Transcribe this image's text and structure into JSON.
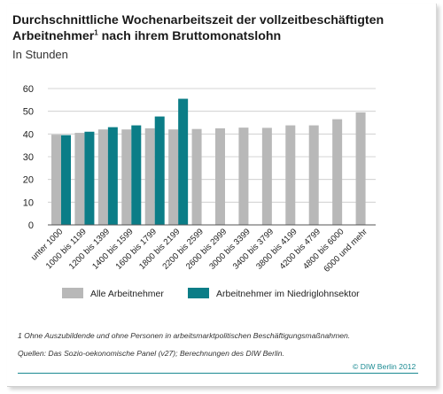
{
  "header": {
    "title_line1": "Durchschnittliche Wochenarbeitszeit der vollzeitbeschäftigten",
    "title_line2": "Arbeitnehmer",
    "title_sup": "1",
    "title_line2_rest": " nach ihrem Bruttomonatslohn",
    "subtitle": "In Stunden"
  },
  "chart_data": {
    "type": "bar",
    "title": "Durchschnittliche Wochenarbeitszeit der vollzeitbeschäftigten Arbeitnehmer nach ihrem Bruttomonatslohn",
    "subtitle": "In Stunden",
    "categories": [
      "unter 1000",
      "1000 bis 1199",
      "1200 bis 1399",
      "1400 bis 1599",
      "1600 bis 1799",
      "1800 bis 2199",
      "2200 bis 2599",
      "2600 bis 2999",
      "3000 bis 3399",
      "3400 bis 3799",
      "3800 bis 4199",
      "4200 bis 4799",
      "4800 bis 6000",
      "6000 und mehr"
    ],
    "series": [
      {
        "name": "Alle Arbeitnehmer",
        "color": "#b8b8b8",
        "values": [
          39.7,
          40.5,
          42.0,
          42.0,
          42.5,
          42.0,
          42.2,
          42.5,
          42.8,
          42.7,
          43.8,
          43.8,
          46.5,
          49.5
        ]
      },
      {
        "name": "Arbeitnehmer im Niedriglohnsektor",
        "color": "#0b7d87",
        "values": [
          39.5,
          41.0,
          43.0,
          43.8,
          47.7,
          55.5,
          null,
          null,
          null,
          null,
          null,
          null,
          null,
          null
        ]
      }
    ],
    "ylim": [
      0,
      60
    ],
    "yticks": [
      0,
      10,
      20,
      30,
      40,
      50,
      60
    ],
    "grid": true,
    "legend": "bottom"
  },
  "footer": {
    "note": "1  Ohne Auszubildende und ohne Personen in arbeitsmarktpolitischen Beschäftigungsmaßnahmen.",
    "source": "Quellen: Das Sozio-oekonomische Panel (v27); Berechnungen des DIW Berlin.",
    "credit": "© DIW Berlin 2012"
  }
}
